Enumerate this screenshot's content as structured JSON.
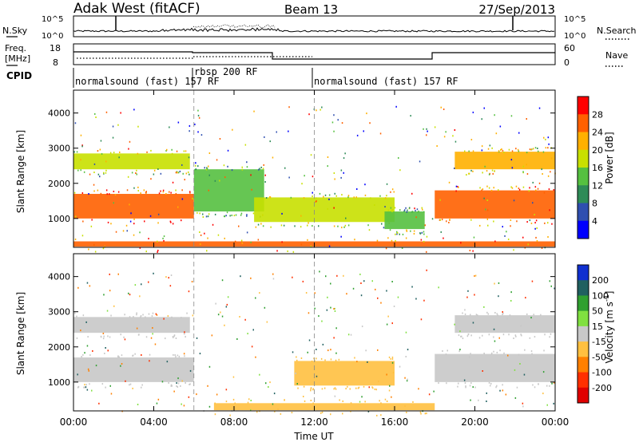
{
  "header": {
    "station": "Adak West (fitACF)",
    "beam": "Beam 13",
    "date": "27/Sep/2013"
  },
  "top_panels": {
    "nsky_label": "N.Sky",
    "nsky_ticks": [
      "10^5",
      "10^0"
    ],
    "nsearch_label": "N.Search",
    "nsearch_ticks": [
      "10^5",
      "10^0"
    ],
    "freq_label_1": "Freq.",
    "freq_label_2": "[MHz]",
    "freq_ticks": [
      "18",
      "8"
    ],
    "nave_label": "Nave",
    "nave_ticks": [
      "60",
      "0"
    ],
    "cpid_label": "CPID",
    "cpid_segments": [
      {
        "label": "normalsound (fast) 157 RF",
        "start_hour": 0,
        "end_hour": 6
      },
      {
        "label": "rbsp 200 RF",
        "start_hour": 6,
        "end_hour": 12
      },
      {
        "label": "normalsound (fast) 157 RF",
        "start_hour": 12,
        "end_hour": 24
      }
    ]
  },
  "chart_data": [
    {
      "type": "heatmap",
      "title": "Power",
      "xlabel": "Time UT",
      "ylabel": "Slant Range [km]",
      "xlim": [
        0,
        24
      ],
      "ylim": [
        180,
        4650
      ],
      "x_ticks": [
        "00:00",
        "04:00",
        "08:00",
        "12:00",
        "16:00",
        "20:00",
        "00:00"
      ],
      "y_ticks": [
        "1000",
        "2000",
        "3000",
        "4000"
      ],
      "colorbar": {
        "label": "Power [dB]",
        "ticks": [
          "4",
          "8",
          "12",
          "16",
          "20",
          "24",
          "28"
        ],
        "colors": [
          "#0000ff",
          "#2f4fb0",
          "#2e8b57",
          "#55c040",
          "#c8e000",
          "#ffb000",
          "#ff6000",
          "#ff0000"
        ]
      },
      "features": [
        {
          "start_hour": 0.0,
          "end_hour": 6.0,
          "range_km": [
            1000,
            1700
          ],
          "value_db": 26
        },
        {
          "start_hour": 0.0,
          "end_hour": 5.8,
          "range_km": [
            2400,
            2850
          ],
          "value_db": 18
        },
        {
          "start_hour": 6.0,
          "end_hour": 9.5,
          "range_km": [
            1200,
            2400
          ],
          "value_db": 14
        },
        {
          "start_hour": 9.0,
          "end_hour": 16.0,
          "range_km": [
            900,
            1600
          ],
          "value_db": 16
        },
        {
          "start_hour": 15.5,
          "end_hour": 17.5,
          "range_km": [
            700,
            1200
          ],
          "value_db": 14
        },
        {
          "start_hour": 18.0,
          "end_hour": 24.0,
          "range_km": [
            1000,
            1800
          ],
          "value_db": 26
        },
        {
          "start_hour": 19.0,
          "end_hour": 24.0,
          "range_km": [
            2400,
            2900
          ],
          "value_db": 20
        },
        {
          "start_hour": 0.0,
          "end_hour": 24.0,
          "range_km": [
            200,
            350
          ],
          "value_db": 24
        }
      ]
    },
    {
      "type": "heatmap",
      "title": "Velocity",
      "xlabel": "Time UT",
      "ylabel": "Slant Range [km]",
      "xlim": [
        0,
        24
      ],
      "ylim": [
        180,
        4650
      ],
      "x_ticks": [
        "00:00",
        "04:00",
        "08:00",
        "12:00",
        "16:00",
        "20:00",
        "00:00"
      ],
      "y_ticks": [
        "1000",
        "2000",
        "3000",
        "4000"
      ],
      "colorbar": {
        "label": "Velocity [m s^-1]",
        "ticks": [
          "200",
          "100",
          "50",
          "15",
          "-15",
          "-50",
          "-100",
          "-200"
        ],
        "colors": [
          "#1030d0",
          "#206060",
          "#30a030",
          "#80e040",
          "#c8c8c8",
          "#ffc040",
          "#ff8000",
          "#ff3000",
          "#e00000"
        ]
      },
      "features": [
        {
          "start_hour": 0.0,
          "end_hour": 6.0,
          "range_km": [
            1000,
            1700
          ],
          "value_ms": 0
        },
        {
          "start_hour": 0.0,
          "end_hour": 5.8,
          "range_km": [
            2400,
            2850
          ],
          "value_ms": 0
        },
        {
          "start_hour": 11.0,
          "end_hour": 16.0,
          "range_km": [
            900,
            1600
          ],
          "value_ms": -40
        },
        {
          "start_hour": 18.0,
          "end_hour": 24.0,
          "range_km": [
            1000,
            1800
          ],
          "value_ms": 0
        },
        {
          "start_hour": 19.0,
          "end_hour": 24.0,
          "range_km": [
            2400,
            2900
          ],
          "value_ms": 0
        },
        {
          "start_hour": 7.0,
          "end_hour": 18.0,
          "range_km": [
            200,
            400
          ],
          "value_ms": -30
        }
      ]
    }
  ]
}
